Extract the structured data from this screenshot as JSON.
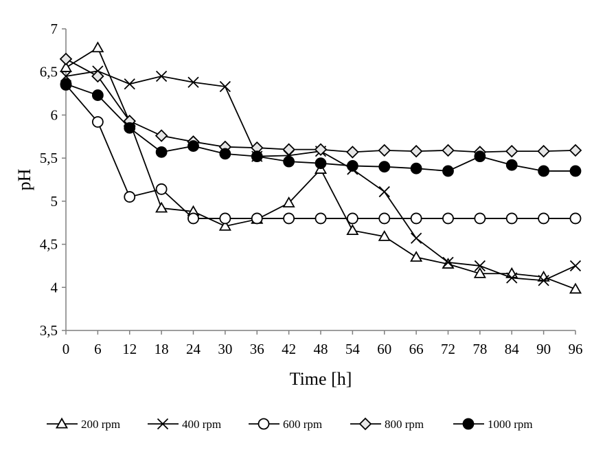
{
  "chart_data": {
    "type": "line",
    "title": "",
    "xlabel": "Time [h]",
    "ylabel": "pH",
    "x": [
      0,
      6,
      12,
      18,
      24,
      30,
      36,
      42,
      48,
      54,
      60,
      66,
      72,
      78,
      84,
      90,
      96
    ],
    "xlim": [
      0,
      96
    ],
    "ylim": [
      3.5,
      7
    ],
    "yticks": [
      "3,5",
      "4",
      "4,5",
      "5",
      "5,5",
      "6",
      "6,5",
      "7"
    ],
    "xticks": [
      "0",
      "6",
      "12",
      "18",
      "24",
      "30",
      "36",
      "42",
      "48",
      "54",
      "60",
      "66",
      "72",
      "78",
      "84",
      "90",
      "96"
    ],
    "grid": false,
    "legend_position": "bottom",
    "series": [
      {
        "name": "200 rpm",
        "marker": "triangle",
        "values": [
          6.55,
          6.78,
          5.92,
          4.92,
          4.88,
          4.71,
          4.79,
          4.98,
          5.37,
          4.66,
          4.59,
          4.35,
          4.27,
          4.16,
          4.16,
          4.12,
          3.98
        ]
      },
      {
        "name": "400 rpm",
        "marker": "cross",
        "values": [
          6.45,
          6.51,
          6.36,
          6.45,
          6.38,
          6.33,
          5.52,
          5.53,
          5.58,
          5.37,
          5.11,
          4.57,
          4.29,
          4.25,
          4.11,
          4.08,
          4.25
        ]
      },
      {
        "name": "600 rpm",
        "marker": "circle-open",
        "values": [
          6.35,
          5.92,
          5.05,
          5.14,
          4.8,
          4.8,
          4.8,
          4.8,
          4.8,
          4.8,
          4.8,
          4.8,
          4.8,
          4.8,
          4.8,
          4.8,
          4.8
        ]
      },
      {
        "name": "800 rpm",
        "marker": "diamond",
        "values": [
          6.65,
          6.45,
          5.93,
          5.76,
          5.69,
          5.63,
          5.62,
          5.6,
          5.6,
          5.57,
          5.59,
          5.58,
          5.59,
          5.57,
          5.58,
          5.58,
          5.59
        ]
      },
      {
        "name": "1000 rpm",
        "marker": "circle-filled",
        "values": [
          6.36,
          6.23,
          5.85,
          5.57,
          5.64,
          5.55,
          5.52,
          5.46,
          5.44,
          5.41,
          5.4,
          5.38,
          5.35,
          5.52,
          5.42,
          5.35,
          5.35
        ]
      }
    ]
  }
}
